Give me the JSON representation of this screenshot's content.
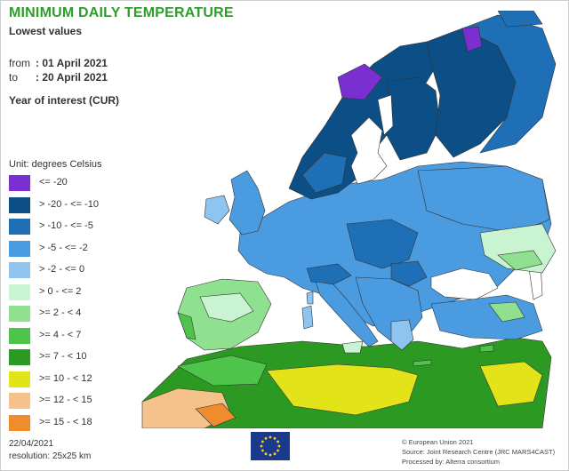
{
  "header": {
    "title": "MINIMUM DAILY TEMPERATURE",
    "subtitle": "Lowest values",
    "from_label": "from",
    "from_value": ": 01 April 2021",
    "to_label": "to",
    "to_value": ": 20 April 2021",
    "year_of_interest": "Year of interest (CUR)"
  },
  "legend": {
    "unit": "Unit: degrees Celsius",
    "items": [
      {
        "label": "<= -20",
        "color": "#7b2fd1"
      },
      {
        "label": "> -20 - <= -10",
        "color": "#0c4f86"
      },
      {
        "label": "> -10 - <= -5",
        "color": "#1f6fb6"
      },
      {
        "label": "> -5 - <= -2",
        "color": "#4b9be0"
      },
      {
        "label": "> -2 - <= 0",
        "color": "#8ec4f0"
      },
      {
        "label": "> 0 - <= 2",
        "color": "#c9f3d1"
      },
      {
        "label": ">= 2 - < 4",
        "color": "#8fe08f"
      },
      {
        "label": ">= 4 - < 7",
        "color": "#4fc44b"
      },
      {
        "label": ">= 7 - < 10",
        "color": "#2c9a22"
      },
      {
        "label": ">= 10 - < 12",
        "color": "#e3e31a"
      },
      {
        "label": ">= 12 - < 15",
        "color": "#f6c28c"
      },
      {
        "label": ">= 15 - < 18",
        "color": "#f08c2c"
      }
    ]
  },
  "footer": {
    "date": "22/04/2021",
    "resolution": "resolution: 25x25 km",
    "credit1": "© European Union 2021",
    "credit2": "Source: Joint Research Centre (JRC MARS4CAST)",
    "credit3": "Processed by: Alterra consortium"
  },
  "colors": {
    "sea": "#ffffff",
    "border": "#333333",
    "title": "#2e9e2a",
    "eu_flag": "#1c3a8c",
    "eu_stars": "#ffd21f"
  }
}
